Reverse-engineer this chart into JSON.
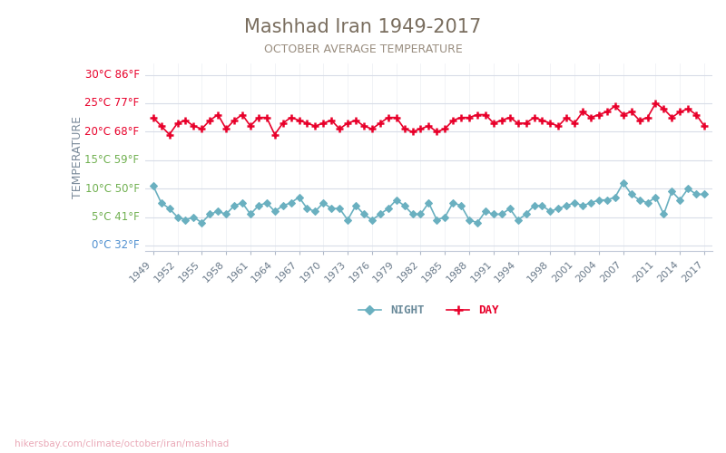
{
  "title": "Mashhad Iran 1949-2017",
  "subtitle": "OCTOBER AVERAGE TEMPERATURE",
  "ylabel": "TEMPERATURE",
  "background_color": "#ffffff",
  "title_color": "#7a6e5f",
  "subtitle_color": "#9a8e80",
  "ylabel_color": "#7a8a9a",
  "grid_color": "#d8dde8",
  "years": [
    1949,
    1950,
    1951,
    1952,
    1953,
    1954,
    1955,
    1956,
    1957,
    1958,
    1959,
    1960,
    1961,
    1962,
    1963,
    1964,
    1965,
    1966,
    1967,
    1968,
    1969,
    1970,
    1971,
    1972,
    1973,
    1974,
    1975,
    1976,
    1977,
    1978,
    1979,
    1980,
    1981,
    1982,
    1983,
    1984,
    1985,
    1986,
    1987,
    1988,
    1989,
    1990,
    1991,
    1992,
    1993,
    1994,
    1995,
    1996,
    1997,
    1998,
    1999,
    2000,
    2001,
    2002,
    2003,
    2004,
    2005,
    2006,
    2007,
    2008,
    2009,
    2010,
    2011,
    2012,
    2013,
    2014,
    2015,
    2016,
    2017
  ],
  "day_temps": [
    22.5,
    21.0,
    19.5,
    21.5,
    22.0,
    21.0,
    20.5,
    22.0,
    23.0,
    20.5,
    22.0,
    23.0,
    21.0,
    22.5,
    22.5,
    19.5,
    21.5,
    22.5,
    22.0,
    21.5,
    21.0,
    21.5,
    22.0,
    20.5,
    21.5,
    22.0,
    21.0,
    20.5,
    21.5,
    22.5,
    22.5,
    20.5,
    20.0,
    20.5,
    21.0,
    20.0,
    20.5,
    22.0,
    22.5,
    22.5,
    23.0,
    23.0,
    21.5,
    22.0,
    22.5,
    21.5,
    21.5,
    22.5,
    22.0,
    21.5,
    21.0,
    22.5,
    21.5,
    23.5,
    22.5,
    23.0,
    23.5,
    24.5,
    23.0,
    23.5,
    22.0,
    22.5,
    25.0,
    24.0,
    22.5,
    23.5,
    24.0,
    23.0,
    21.0
  ],
  "night_temps": [
    10.5,
    7.5,
    6.5,
    5.0,
    4.5,
    5.0,
    4.0,
    5.5,
    6.0,
    5.5,
    7.0,
    7.5,
    5.5,
    7.0,
    7.5,
    6.0,
    7.0,
    7.5,
    8.5,
    6.5,
    6.0,
    7.5,
    6.5,
    6.5,
    4.5,
    7.0,
    5.5,
    4.5,
    5.5,
    6.5,
    8.0,
    7.0,
    5.5,
    5.5,
    7.5,
    4.5,
    5.0,
    7.5,
    7.0,
    4.5,
    4.0,
    6.0,
    5.5,
    5.5,
    6.5,
    4.5,
    5.5,
    7.0,
    7.0,
    6.0,
    6.5,
    7.0,
    7.5,
    7.0,
    7.5,
    8.0,
    8.0,
    8.5,
    11.0,
    9.0,
    8.0,
    7.5,
    8.5,
    5.5,
    9.5,
    8.0,
    10.0,
    9.0,
    9.0
  ],
  "day_color": "#e8002a",
  "night_color": "#6ab0c0",
  "day_marker": "P",
  "night_marker": "D",
  "xtick_years": [
    1949,
    1952,
    1955,
    1958,
    1961,
    1964,
    1967,
    1970,
    1973,
    1976,
    1979,
    1982,
    1985,
    1988,
    1991,
    1994,
    1998,
    2001,
    2004,
    2007,
    2011,
    2014,
    2017
  ],
  "yticks_c": [
    0,
    5,
    10,
    15,
    20,
    25,
    30
  ],
  "yticks_f": [
    32,
    41,
    50,
    59,
    68,
    77,
    86
  ],
  "ytick_colors": [
    "#5090d0",
    "#70b050",
    "#70b050",
    "#70b050",
    "#e8002a",
    "#e8002a",
    "#e8002a"
  ],
  "ylim": [
    -1,
    32
  ],
  "xlim": [
    1948,
    2018
  ],
  "watermark": "hikersbay.com/climate/october/iran/mashhad",
  "legend_night": "NIGHT",
  "legend_day": "DAY"
}
